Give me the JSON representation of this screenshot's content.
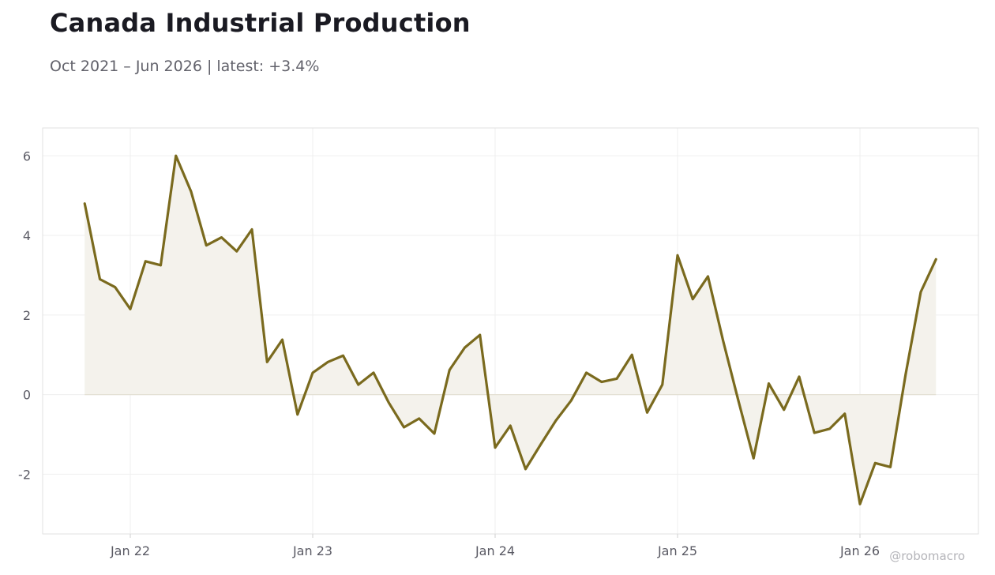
{
  "header": {
    "title": "Canada Industrial Production",
    "subtitle": "Oct 2021 – Jun 2026 | latest: +3.4%"
  },
  "credit": "@robomacro",
  "colors": {
    "line": "#7a6a1e",
    "fill": "#f4f2ec",
    "grid": "#efefef",
    "frame": "#e2e2e2"
  },
  "chart_data": {
    "type": "area",
    "x_start": "2021-10",
    "x_frequency": "monthly",
    "x_ticks": [
      {
        "date": "2022-01",
        "label": "Jan 22"
      },
      {
        "date": "2023-01",
        "label": "Jan 23"
      },
      {
        "date": "2024-01",
        "label": "Jan 24"
      },
      {
        "date": "2025-01",
        "label": "Jan 25"
      },
      {
        "date": "2026-01",
        "label": "Jan 26"
      }
    ],
    "y_ticks": [
      -2,
      0,
      2,
      4,
      6
    ],
    "y_tick_labels": [
      "-2",
      "0",
      "2",
      "4",
      "6"
    ],
    "ylim": [
      -3.5,
      6.7
    ],
    "grid": true,
    "legend": "none",
    "values": [
      4.8,
      2.9,
      2.7,
      2.15,
      3.35,
      3.25,
      6.0,
      5.1,
      3.75,
      3.95,
      3.6,
      4.15,
      0.82,
      1.38,
      -0.5,
      0.55,
      0.82,
      0.98,
      0.25,
      0.55,
      -0.2,
      -0.82,
      -0.6,
      -0.98,
      0.62,
      1.18,
      1.5,
      -1.33,
      -0.78,
      -1.87,
      -1.25,
      -0.65,
      -0.15,
      0.55,
      0.32,
      0.4,
      1.0,
      -0.45,
      0.25,
      3.5,
      2.4,
      2.97,
      1.35,
      -0.15,
      -1.6,
      0.28,
      -0.38,
      0.45,
      -0.96,
      -0.86,
      -0.48,
      -2.75,
      -1.72,
      -1.82,
      0.5,
      2.58,
      3.4
    ]
  }
}
